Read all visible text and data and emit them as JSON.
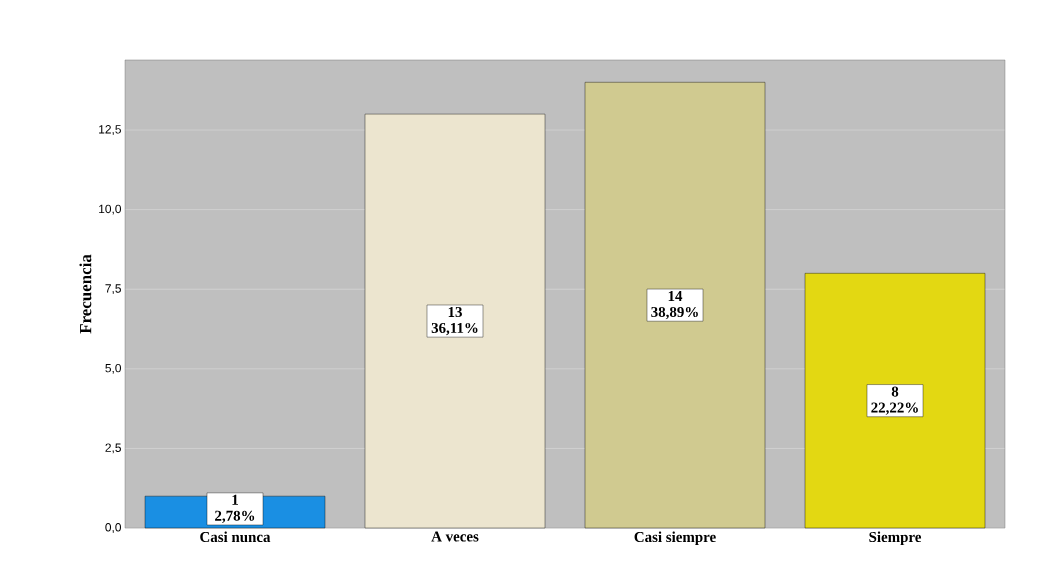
{
  "chart_data": {
    "type": "bar",
    "ylabel": "Frecuencia",
    "categories": [
      "Casi nunca",
      "A veces",
      "Casi siempre",
      "Siempre"
    ],
    "values": [
      1,
      13,
      14,
      8
    ],
    "colors": [
      "#1a8fe3",
      "#ece5cf",
      "#d0ca90",
      "#e3d812"
    ],
    "value_labels": [
      "1 2,78%",
      "13 36,11%",
      "14 38,89%",
      "8 22,22%"
    ],
    "ylim": [
      0,
      14.7
    ],
    "yticks": [
      {
        "value": 0,
        "label": "0,0"
      },
      {
        "value": 2.5,
        "label": "2,5"
      },
      {
        "value": 5,
        "label": "5,0"
      },
      {
        "value": 7.5,
        "label": "7,5"
      },
      {
        "value": 10,
        "label": "10,0"
      },
      {
        "value": 12.5,
        "label": "12,5"
      }
    ],
    "grid": "y"
  }
}
